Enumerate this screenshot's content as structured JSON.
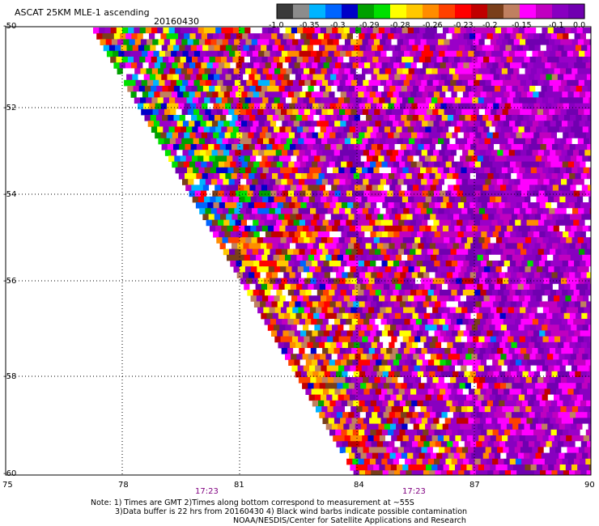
{
  "header": {
    "title": "ASCAT 25KM MLE-1 ascending",
    "date": "20160430"
  },
  "colorbar": {
    "colors": [
      "#3a3a3a",
      "#8c8c8c",
      "#00b4ff",
      "#0064ff",
      "#0000c8",
      "#00a000",
      "#00e000",
      "#ffff00",
      "#ffc800",
      "#ff8c00",
      "#ff4000",
      "#ff0000",
      "#c00000",
      "#7a3f1a",
      "#c08060",
      "#ff00ff",
      "#c000c0",
      "#8800c0",
      "#7000b0"
    ],
    "labels": [
      "-1.0",
      "-0.35",
      "-0.3",
      "-0.29",
      "-0.28",
      "-0.26",
      "-0.23",
      "-0.2",
      "-0.15",
      "-0.1",
      "0.0"
    ]
  },
  "axes": {
    "lat_labels": [
      "-50",
      "-52",
      "-54",
      "-56",
      "-58",
      "-60"
    ],
    "lon_labels": [
      "75",
      "78",
      "81",
      "84",
      "87",
      "90"
    ],
    "time_labels": [
      "17:23",
      "17:23"
    ]
  },
  "notes": [
    "Note: 1) Times are GMT 2)Times along bottom correspond to measurement at ~55S",
    "3)Data buffer is 22 hrs from 20160430 4) Black wind barbs indicate possible contamination",
    "NOAA/NESDIS/Center for Satellite Applications and Research"
  ]
}
